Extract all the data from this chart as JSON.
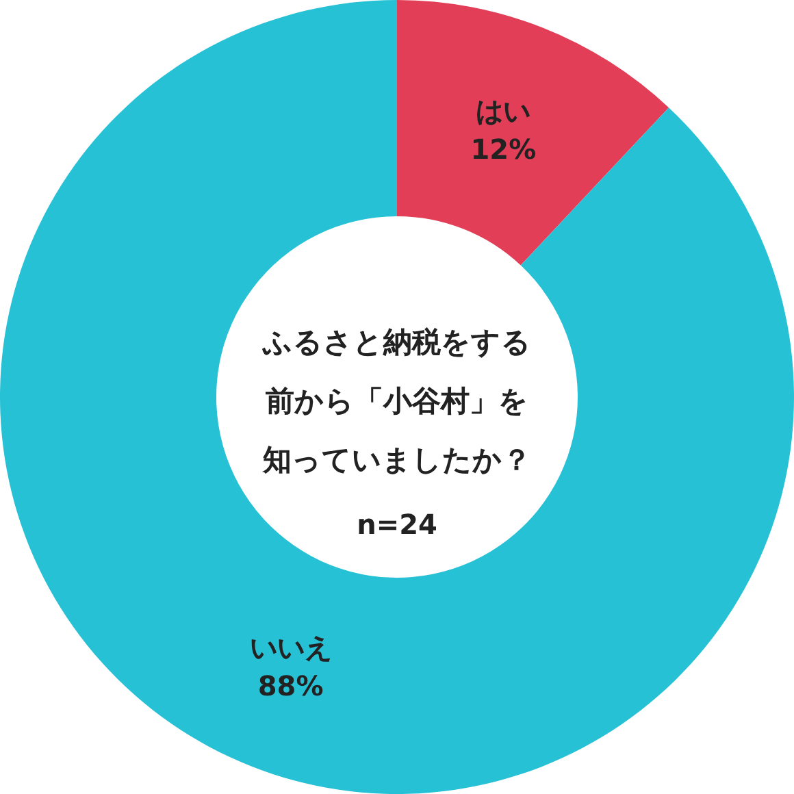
{
  "chart_data": {
    "type": "donut",
    "title": "ふるさと納税をする前から「小谷村」を知っていましたか？",
    "subtitle": "n=24",
    "categories": [
      "はい",
      "いいえ"
    ],
    "values": [
      12,
      88
    ],
    "value_labels": [
      "12%",
      "88%"
    ],
    "colors": [
      "#e23e57",
      "#27c1d6"
    ]
  }
}
